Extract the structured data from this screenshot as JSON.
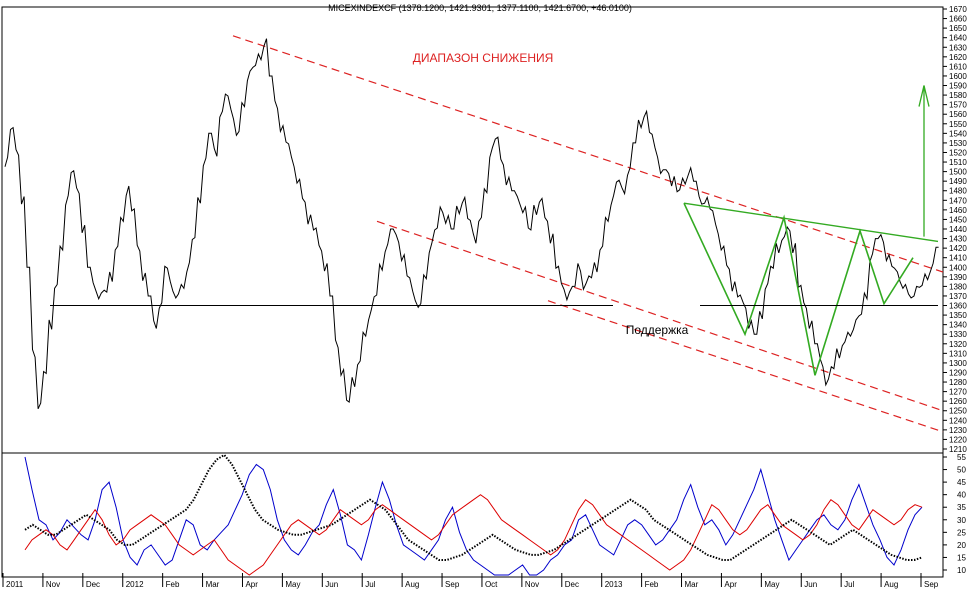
{
  "chart_data": [
    {
      "type": "line",
      "title": "MICEXINDEXCF (1378.1200, 1421.9301, 1377.1100, 1421.6700, +46.0100)",
      "ylim": [
        1210,
        1670
      ],
      "yticks": [
        1210,
        1220,
        1230,
        1240,
        1250,
        1260,
        1270,
        1280,
        1290,
        1300,
        1310,
        1320,
        1330,
        1340,
        1350,
        1360,
        1370,
        1380,
        1390,
        1400,
        1410,
        1420,
        1430,
        1440,
        1450,
        1460,
        1470,
        1480,
        1490,
        1500,
        1510,
        1520,
        1530,
        1540,
        1550,
        1560,
        1570,
        1580,
        1590,
        1600,
        1610,
        1620,
        1630,
        1640,
        1650,
        1660,
        1670
      ],
      "x_labels": [
        "2011",
        "Nov",
        "Dec",
        "2012",
        "Feb",
        "Mar",
        "Apr",
        "May",
        "Jun",
        "Jul",
        "Aug",
        "Sep",
        "Oct",
        "Nov",
        "Dec",
        "2013",
        "Feb",
        "Mar",
        "Apr",
        "May",
        "Jun",
        "Jul",
        "Aug",
        "Sep"
      ],
      "annotations": {
        "range_label": "ДИАПАЗОН СНИЖЕНИЯ",
        "support_label": "Поддержка"
      },
      "support_level": 1360,
      "colors": {
        "price": "#000000",
        "channel": "#dd2222",
        "pattern": "#33aa22",
        "support": "#000000",
        "label": "#dd2222"
      },
      "series": [
        {
          "values": [
            1510,
            1545,
            1520,
            1470,
            1400,
            1310,
            1255,
            1290,
            1340,
            1380,
            1420,
            1470,
            1500,
            1480,
            1440,
            1400,
            1380,
            1370,
            1375,
            1390,
            1420,
            1450,
            1480,
            1460,
            1420,
            1390,
            1370,
            1340,
            1360,
            1400,
            1380,
            1370,
            1380,
            1400,
            1430,
            1470,
            1510,
            1540,
            1520,
            1560,
            1580,
            1560,
            1540,
            1570,
            1600,
            1610,
            1620,
            1635,
            1600,
            1570,
            1545,
            1530,
            1510,
            1490,
            1470,
            1450,
            1440,
            1420,
            1400,
            1370,
            1320,
            1290,
            1260,
            1280,
            1300,
            1330,
            1350,
            1370,
            1400,
            1420,
            1440,
            1430,
            1410,
            1390,
            1370,
            1360,
            1390,
            1420,
            1440,
            1460,
            1450,
            1440,
            1460,
            1470,
            1450,
            1430,
            1450,
            1480,
            1520,
            1535,
            1510,
            1490,
            1480,
            1470,
            1460,
            1440,
            1460,
            1470,
            1450,
            1430,
            1400,
            1380,
            1370,
            1380,
            1400,
            1380,
            1390,
            1400,
            1420,
            1450,
            1470,
            1490,
            1480,
            1500,
            1530,
            1550,
            1560,
            1540,
            1520,
            1500,
            1500,
            1490,
            1480,
            1490,
            1500,
            1490,
            1470,
            1470,
            1460,
            1440,
            1420,
            1400,
            1380,
            1370,
            1360,
            1340,
            1330,
            1350,
            1380,
            1400,
            1420,
            1430,
            1440,
            1420,
            1380,
            1360,
            1340,
            1320,
            1300,
            1280,
            1295,
            1310,
            1320,
            1330,
            1340,
            1350,
            1370,
            1410,
            1430,
            1430,
            1410,
            1400,
            1390,
            1380,
            1370,
            1375,
            1380,
            1390,
            1400,
            1421
          ]
        }
      ]
    },
    {
      "type": "line",
      "ylim": [
        0,
        55
      ],
      "yticks": [
        10,
        15,
        20,
        25,
        30,
        35,
        40,
        45,
        50,
        55
      ],
      "series": [
        {
          "color": "#0000cc",
          "values": [
            55,
            42,
            30,
            28,
            22,
            25,
            30,
            27,
            24,
            22,
            30,
            42,
            45,
            35,
            22,
            15,
            12,
            18,
            20,
            16,
            12,
            14,
            22,
            30,
            28,
            20,
            18,
            22,
            25,
            28,
            34,
            40,
            48,
            52,
            50,
            42,
            30,
            22,
            18,
            16,
            20,
            25,
            28,
            36,
            42,
            32,
            20,
            18,
            14,
            24,
            35,
            45,
            38,
            28,
            20,
            18,
            16,
            14,
            18,
            22,
            30,
            35,
            25,
            18,
            14,
            12,
            10,
            8,
            6,
            8,
            10,
            12,
            8,
            8,
            10,
            14,
            16,
            20,
            22,
            30,
            32,
            26,
            20,
            18,
            16,
            22,
            28,
            30,
            28,
            24,
            20,
            22,
            26,
            30,
            38,
            44,
            35,
            28,
            30,
            26,
            20,
            24,
            30,
            36,
            42,
            50,
            40,
            30,
            22,
            14,
            18,
            22,
            26,
            30,
            32,
            28,
            26,
            30,
            38,
            44,
            36,
            28,
            22,
            15,
            12,
            18,
            26,
            32,
            35
          ]
        },
        {
          "color": "#dd0000",
          "values": [
            18,
            22,
            24,
            26,
            24,
            20,
            18,
            22,
            26,
            30,
            34,
            30,
            24,
            20,
            22,
            26,
            28,
            30,
            32,
            30,
            28,
            24,
            20,
            18,
            16,
            18,
            20,
            22,
            18,
            14,
            12,
            10,
            8,
            10,
            12,
            16,
            20,
            24,
            28,
            30,
            28,
            26,
            24,
            26,
            30,
            34,
            32,
            30,
            28,
            30,
            34,
            36,
            34,
            32,
            30,
            28,
            26,
            24,
            22,
            24,
            28,
            32,
            34,
            36,
            38,
            40,
            38,
            34,
            30,
            28,
            26,
            24,
            22,
            20,
            18,
            16,
            18,
            22,
            28,
            34,
            38,
            36,
            32,
            28,
            26,
            24,
            22,
            20,
            18,
            16,
            14,
            12,
            10,
            12,
            14,
            18,
            24,
            30,
            36,
            34,
            30,
            26,
            24,
            26,
            30,
            34,
            36,
            32,
            28,
            26,
            24,
            22,
            24,
            28,
            34,
            38,
            36,
            32,
            28,
            26,
            30,
            34,
            32,
            30,
            28,
            30,
            34,
            36,
            35
          ]
        },
        {
          "color": "#000000",
          "dotted": true,
          "values": [
            26,
            28,
            26,
            24,
            24,
            26,
            28,
            30,
            32,
            30,
            28,
            26,
            22,
            20,
            20,
            22,
            24,
            26,
            28,
            30,
            32,
            34,
            38,
            44,
            50,
            54,
            56,
            52,
            46,
            40,
            34,
            30,
            28,
            26,
            25,
            24,
            24,
            25,
            26,
            27,
            28,
            30,
            32,
            34,
            36,
            38,
            36,
            34,
            30,
            26,
            22,
            20,
            18,
            16,
            14,
            14,
            15,
            16,
            18,
            20,
            22,
            24,
            22,
            20,
            18,
            17,
            16,
            16,
            17,
            18,
            20,
            22,
            24,
            26,
            28,
            30,
            32,
            34,
            36,
            38,
            36,
            34,
            30,
            28,
            26,
            24,
            22,
            20,
            18,
            16,
            15,
            14,
            14,
            16,
            18,
            20,
            22,
            24,
            26,
            28,
            30,
            28,
            26,
            24,
            22,
            20,
            22,
            24,
            26,
            24,
            22,
            20,
            18,
            16,
            15,
            14,
            14,
            15
          ]
        }
      ]
    }
  ]
}
